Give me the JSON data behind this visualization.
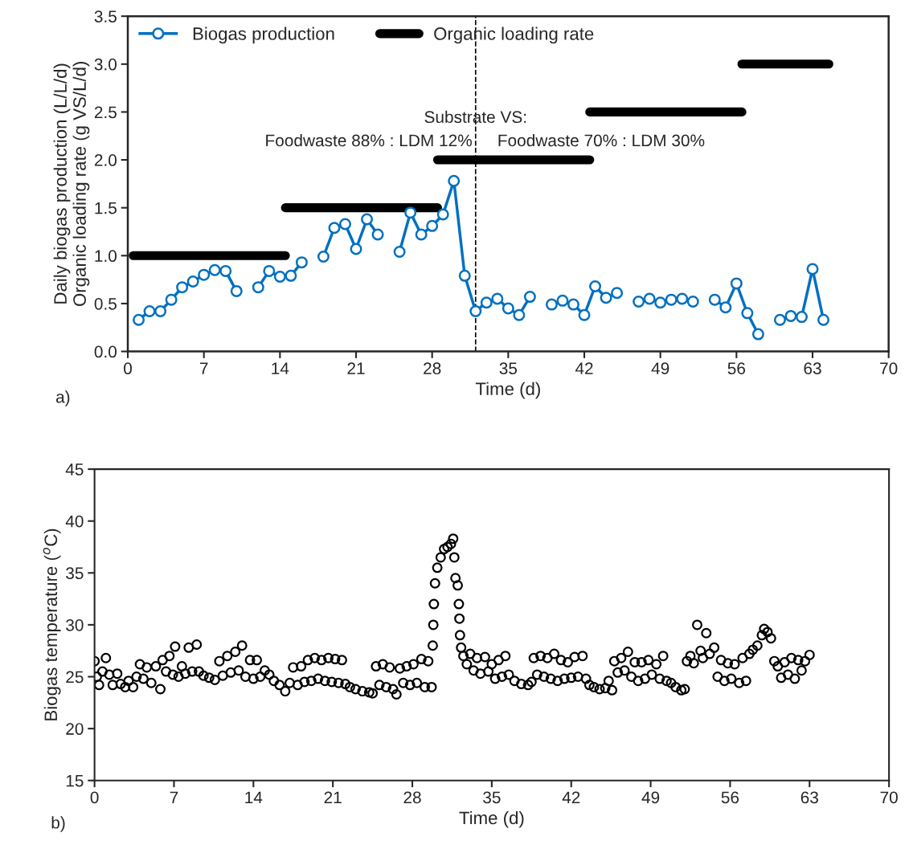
{
  "chart_data": [
    {
      "type": "line",
      "xlabel": "Time (d)",
      "ylabel": "Daily biogas production (L/L/d)\nOrganic loading rate (g VS/L/d)",
      "xlim": [
        0,
        70
      ],
      "xticks": [
        0,
        7,
        14,
        21,
        28,
        35,
        42,
        49,
        56,
        63,
        70
      ],
      "ylim": [
        0,
        3.5
      ],
      "yticks": [
        {
          "value": 0,
          "label": "0.0"
        },
        0.5,
        {
          "value": 1,
          "label": "1.0"
        },
        1.5,
        {
          "value": 2,
          "label": "2.0"
        },
        2.5,
        {
          "value": 3,
          "label": "3.0"
        },
        3.5
      ],
      "grid": false,
      "legend": "top left",
      "series": [
        {
          "name": "Biogas production",
          "color": "#0070c0",
          "marker": "circle",
          "line_style": "solid",
          "x": [
            1,
            2,
            3,
            4,
            5,
            6,
            7,
            8,
            9,
            10,
            11,
            12,
            13,
            14,
            15,
            16,
            17,
            18,
            19,
            20,
            21,
            22,
            23,
            24,
            25,
            26,
            27,
            28,
            29,
            30,
            31,
            32,
            33,
            34,
            35,
            36,
            37,
            38,
            39,
            40,
            41,
            42,
            43,
            44,
            45,
            46,
            47,
            48,
            49,
            50,
            51,
            52,
            53,
            54,
            55,
            56,
            57,
            58,
            59,
            60,
            61,
            62,
            63,
            64
          ],
          "values": [
            0.33,
            0.42,
            0.42,
            0.54,
            0.67,
            0.73,
            0.8,
            0.85,
            0.84,
            0.63,
            null,
            0.67,
            0.84,
            0.78,
            0.79,
            0.93,
            null,
            0.99,
            1.29,
            1.33,
            1.07,
            1.38,
            1.22,
            null,
            1.04,
            1.45,
            1.22,
            1.31,
            1.43,
            1.78,
            0.79,
            0.42,
            0.51,
            0.55,
            0.45,
            0.38,
            0.57,
            null,
            0.49,
            0.53,
            0.49,
            0.38,
            0.68,
            0.56,
            0.61,
            null,
            0.52,
            0.55,
            0.51,
            0.54,
            0.55,
            0.52,
            null,
            0.54,
            0.46,
            0.71,
            0.4,
            0.18,
            null,
            0.33,
            0.37,
            0.36,
            0.86,
            0.33
          ]
        },
        {
          "name": "Organic loading rate",
          "color": "#000000",
          "marker": "none",
          "line_style": "solid",
          "x": [
            0.5,
            14.5,
            null,
            14.5,
            28.5,
            null,
            28.5,
            42.5,
            null,
            42.5,
            56.5,
            null,
            56.5,
            64.5
          ],
          "values": [
            1,
            1,
            null,
            1.5,
            1.5,
            null,
            2,
            2,
            null,
            2.5,
            2.5,
            null,
            3,
            3
          ]
        }
      ],
      "ref_lines": [
        {
          "axis": "x",
          "value": 32,
          "color": "#000000",
          "line_style": "dashed"
        }
      ],
      "annotations": [
        "Substrate VS:",
        "Foodwaste 88% : LDM 12%",
        "Foodwaste 70% : LDM 30%",
        "a)"
      ]
    },
    {
      "type": "scatter",
      "xlabel": "Time (d)",
      "ylabel": "Biogas temperature ($^{o}$C)",
      "xlim": [
        0,
        70
      ],
      "xticks": [
        0,
        7,
        14,
        21,
        28,
        35,
        42,
        49,
        56,
        63,
        70
      ],
      "ylim": [
        15,
        45
      ],
      "yticks": [
        15,
        20,
        25,
        30,
        35,
        40,
        45
      ],
      "grid": false,
      "marker": "circle",
      "series": [
        {
          "color": "#000000",
          "x": [
            0.0,
            0.2,
            0.4,
            0.7,
            1.0,
            1.3,
            1.6,
            2.0,
            2.3,
            2.7,
            3.0,
            3.4,
            3.7,
            4.0,
            4.3,
            4.6,
            5.0,
            5.4,
            5.8,
            6.0,
            6.3,
            6.6,
            6.9,
            7.1,
            7.4,
            7.7,
            8.0,
            8.3,
            8.6,
            9.0,
            9.2,
            9.6,
            10.1,
            10.6,
            11.0,
            11.3,
            11.7,
            12.0,
            12.4,
            12.7,
            13.0,
            13.3,
            13.7,
            14.0,
            14.3,
            14.6,
            15.0,
            15.4,
            15.8,
            16.3,
            16.8,
            17.2,
            17.5,
            17.9,
            18.2,
            18.5,
            18.8,
            19.1,
            19.4,
            19.7,
            20.0,
            20.3,
            20.6,
            20.9,
            21.2,
            21.5,
            21.8,
            22.1,
            22.5,
            23.0,
            23.6,
            24.2,
            24.5,
            24.8,
            25.1,
            25.4,
            25.7,
            26.0,
            26.3,
            26.6,
            26.9,
            27.2,
            27.5,
            27.8,
            28.1,
            28.4,
            28.8,
            29.1,
            29.4,
            29.7,
            29.8,
            29.85,
            29.9,
            30.0,
            30.2,
            30.5,
            30.8,
            31.1,
            31.4,
            31.6,
            31.7,
            31.8,
            32.0,
            32.1,
            32.15,
            32.2,
            32.3,
            32.5,
            32.8,
            33.1,
            33.4,
            33.7,
            34.0,
            34.4,
            34.7,
            35.0,
            35.3,
            35.6,
            35.9,
            36.2,
            36.5,
            37.0,
            37.6,
            38.2,
            38.5,
            38.7,
            39.0,
            39.3,
            39.6,
            39.9,
            40.2,
            40.5,
            40.8,
            41.1,
            41.4,
            41.7,
            42.0,
            42.3,
            42.6,
            43.0,
            43.3,
            43.6,
            44.0,
            44.5,
            45.0,
            45.3,
            45.6,
            45.8,
            46.1,
            46.4,
            46.7,
            47.0,
            47.3,
            47.6,
            47.9,
            48.2,
            48.5,
            48.8,
            49.1,
            49.5,
            49.8,
            50.1,
            50.4,
            50.8,
            51.2,
            51.7,
            52.0,
            52.2,
            52.5,
            52.8,
            53.1,
            53.4,
            53.6,
            53.9,
            54.2,
            54.6,
            54.9,
            55.2,
            55.5,
            55.8,
            56.1,
            56.4,
            56.8,
            57.1,
            57.4,
            57.7,
            58.0,
            58.4,
            58.8,
            59.0,
            59.3,
            59.6,
            59.9,
            60.2,
            60.5,
            60.8,
            61.1,
            61.4,
            61.7,
            62.0,
            62.3,
            62.6,
            63.0
          ],
          "values": [
            26.5,
            25.0,
            24.2,
            25.5,
            26.8,
            25.2,
            24.2,
            25.3,
            24.3,
            24.0,
            24.6,
            24.0,
            25.0,
            26.2,
            24.8,
            25.9,
            24.4,
            26.0,
            23.8,
            26.6,
            25.5,
            27.0,
            25.2,
            27.9,
            25.0,
            26.0,
            25.3,
            27.8,
            25.5,
            28.1,
            25.5,
            25.1,
            24.9,
            24.7,
            26.5,
            25.1,
            27.0,
            25.4,
            27.4,
            25.6,
            28.0,
            25.0,
            26.6,
            24.8,
            26.6,
            25.0,
            25.6,
            25.2,
            24.6,
            24.2,
            23.6,
            24.4,
            25.9,
            24.2,
            26.0,
            24.5,
            26.6,
            24.6,
            26.8,
            24.8,
            26.6,
            24.6,
            26.8,
            24.5,
            26.7,
            24.4,
            26.6,
            24.3,
            24.0,
            23.8,
            23.6,
            23.5,
            23.4,
            26.0,
            24.2,
            26.2,
            24.0,
            25.9,
            23.8,
            23.3,
            25.8,
            24.4,
            26.0,
            24.2,
            26.2,
            24.4,
            26.7,
            24.0,
            26.5,
            24.0,
            28.0,
            30.0,
            32.0,
            34.0,
            35.5,
            36.5,
            37.3,
            37.5,
            37.8,
            38.3,
            36.5,
            34.5,
            33.8,
            32.0,
            30.6,
            29.0,
            27.8,
            27.0,
            26.2,
            27.2,
            25.6,
            26.8,
            25.3,
            26.9,
            25.5,
            26.2,
            24.8,
            26.6,
            25.0,
            27.0,
            25.2,
            24.6,
            24.3,
            24.2,
            24.5,
            26.8,
            25.2,
            27.0,
            25.0,
            26.8,
            24.8,
            27.2,
            24.6,
            26.6,
            24.8,
            26.4,
            24.9,
            26.9,
            25.0,
            27.0,
            24.8,
            24.2,
            24.0,
            23.8,
            23.9,
            24.6,
            23.7,
            26.5,
            25.4,
            26.8,
            25.6,
            27.4,
            25.0,
            26.4,
            24.6,
            26.4,
            24.8,
            26.6,
            25.2,
            26.2,
            24.8,
            27.0,
            24.6,
            24.4,
            24.0,
            23.7,
            23.8,
            26.5,
            27.0,
            26.3,
            30.0,
            27.5,
            26.8,
            29.2,
            27.2,
            27.8,
            25.0,
            26.6,
            24.6,
            26.3,
            24.8,
            26.2,
            24.4,
            26.8,
            24.6,
            27.2,
            27.6,
            28.0,
            29.0,
            29.6,
            29.3,
            28.7,
            26.5,
            26.0,
            24.9,
            26.4,
            25.2,
            26.8,
            24.8,
            26.6,
            25.6,
            26.5,
            27.1
          ]
        }
      ],
      "annotations": [
        "b)"
      ]
    }
  ]
}
